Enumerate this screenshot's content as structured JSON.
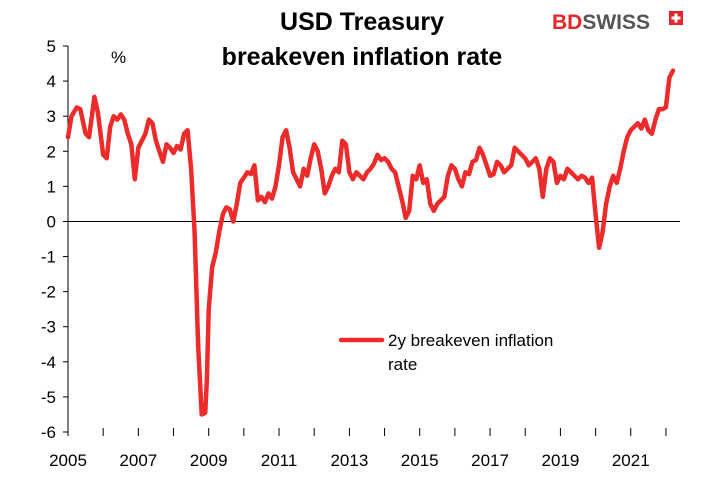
{
  "logo": {
    "part1": "BD",
    "part2": "SWISS"
  },
  "colors": {
    "series": "#ee2b2b",
    "axis": "#000000",
    "logo_red": "#e8262a",
    "logo_gray": "#555555"
  },
  "chart_data": {
    "type": "line",
    "title": [
      "USD Treasury",
      "breakeven  inflation rate"
    ],
    "unit_label": "%",
    "xlabel": "",
    "ylabel": "",
    "ylim": [
      -6,
      5
    ],
    "xlim": [
      2005,
      2022.4
    ],
    "yticks": [
      "5",
      "4",
      "3",
      "2",
      "1",
      "0",
      "-1",
      "-2",
      "-3",
      "-4",
      "-5",
      "-6"
    ],
    "xticks": [
      "2005",
      "2007",
      "2009",
      "2011",
      "2013",
      "2015",
      "2017",
      "2019",
      "2021"
    ],
    "legend": {
      "position": "center-right",
      "entries": [
        "2y breakeven inflation",
        "rate"
      ]
    },
    "grid": false,
    "series": [
      {
        "name": "2y breakeven inflation rate",
        "x": [
          2005.0,
          2005.1,
          2005.25,
          2005.35,
          2005.5,
          2005.6,
          2005.75,
          2005.85,
          2006.0,
          2006.1,
          2006.2,
          2006.3,
          2006.4,
          2006.5,
          2006.6,
          2006.7,
          2006.8,
          2006.9,
          2007.0,
          2007.1,
          2007.2,
          2007.3,
          2007.4,
          2007.5,
          2007.6,
          2007.7,
          2007.8,
          2007.9,
          2008.0,
          2008.1,
          2008.2,
          2008.3,
          2008.4,
          2008.5,
          2008.6,
          2008.7,
          2008.8,
          2008.9,
          2008.95,
          2009.0,
          2009.1,
          2009.2,
          2009.3,
          2009.4,
          2009.5,
          2009.6,
          2009.7,
          2009.8,
          2009.9,
          2010.0,
          2010.1,
          2010.2,
          2010.3,
          2010.4,
          2010.5,
          2010.6,
          2010.7,
          2010.8,
          2010.9,
          2011.0,
          2011.1,
          2011.2,
          2011.3,
          2011.4,
          2011.5,
          2011.6,
          2011.7,
          2011.8,
          2011.9,
          2012.0,
          2012.1,
          2012.2,
          2012.3,
          2012.4,
          2012.5,
          2012.6,
          2012.7,
          2012.8,
          2012.9,
          2013.0,
          2013.1,
          2013.2,
          2013.3,
          2013.4,
          2013.5,
          2013.6,
          2013.7,
          2013.8,
          2013.9,
          2014.0,
          2014.1,
          2014.2,
          2014.3,
          2014.4,
          2014.5,
          2014.6,
          2014.7,
          2014.8,
          2014.9,
          2015.0,
          2015.1,
          2015.2,
          2015.3,
          2015.4,
          2015.5,
          2015.6,
          2015.7,
          2015.8,
          2015.9,
          2016.0,
          2016.1,
          2016.2,
          2016.3,
          2016.4,
          2016.5,
          2016.6,
          2016.7,
          2016.8,
          2016.9,
          2017.0,
          2017.1,
          2017.2,
          2017.3,
          2017.4,
          2017.5,
          2017.6,
          2017.7,
          2017.8,
          2017.9,
          2018.0,
          2018.1,
          2018.2,
          2018.3,
          2018.4,
          2018.5,
          2018.6,
          2018.7,
          2018.8,
          2018.9,
          2019.0,
          2019.1,
          2019.2,
          2019.3,
          2019.4,
          2019.5,
          2019.6,
          2019.7,
          2019.8,
          2019.9,
          2020.0,
          2020.1,
          2020.2,
          2020.3,
          2020.4,
          2020.5,
          2020.6,
          2020.7,
          2020.8,
          2020.9,
          2021.0,
          2021.1,
          2021.2,
          2021.3,
          2021.4,
          2021.5,
          2021.6,
          2021.7,
          2021.8,
          2021.9,
          2022.0,
          2022.1,
          2022.2
        ],
        "values": [
          2.4,
          3.0,
          3.25,
          3.2,
          2.5,
          2.4,
          3.55,
          3.1,
          1.9,
          1.8,
          2.7,
          3.0,
          2.9,
          3.05,
          2.9,
          2.5,
          2.2,
          1.2,
          2.1,
          2.3,
          2.5,
          2.9,
          2.8,
          2.3,
          2.0,
          1.7,
          2.2,
          2.1,
          1.95,
          2.15,
          2.05,
          2.5,
          2.6,
          1.5,
          -0.3,
          -3.5,
          -5.5,
          -5.45,
          -4.5,
          -2.5,
          -1.3,
          -0.9,
          -0.3,
          0.2,
          0.4,
          0.35,
          0.0,
          0.5,
          1.1,
          1.25,
          1.4,
          1.35,
          1.6,
          0.6,
          0.7,
          0.55,
          0.8,
          0.65,
          1.0,
          1.6,
          2.4,
          2.6,
          2.1,
          1.4,
          1.2,
          1.0,
          1.5,
          1.3,
          1.8,
          2.2,
          2.0,
          1.5,
          0.8,
          1.0,
          1.3,
          1.5,
          1.4,
          2.3,
          2.2,
          1.4,
          1.2,
          1.4,
          1.3,
          1.2,
          1.4,
          1.5,
          1.65,
          1.9,
          1.75,
          1.8,
          1.7,
          1.5,
          1.4,
          1.0,
          0.6,
          0.1,
          0.3,
          1.3,
          1.2,
          1.6,
          1.1,
          1.2,
          0.5,
          0.3,
          0.5,
          0.6,
          0.7,
          1.3,
          1.6,
          1.5,
          1.2,
          1.0,
          1.4,
          1.35,
          1.7,
          1.75,
          2.1,
          1.9,
          1.6,
          1.3,
          1.35,
          1.7,
          1.6,
          1.4,
          1.5,
          1.6,
          2.1,
          2.0,
          1.9,
          1.8,
          1.6,
          1.7,
          1.8,
          1.5,
          0.7,
          1.5,
          1.8,
          1.7,
          1.1,
          1.3,
          1.2,
          1.5,
          1.4,
          1.3,
          1.2,
          1.3,
          1.25,
          1.1,
          1.25,
          0.2,
          -0.75,
          -0.3,
          0.5,
          1.0,
          1.3,
          1.1,
          1.5,
          2.0,
          2.4,
          2.6,
          2.7,
          2.8,
          2.65,
          2.9,
          2.6,
          2.5,
          2.9,
          3.2,
          3.2,
          3.25,
          4.1,
          4.3
        ]
      }
    ]
  }
}
